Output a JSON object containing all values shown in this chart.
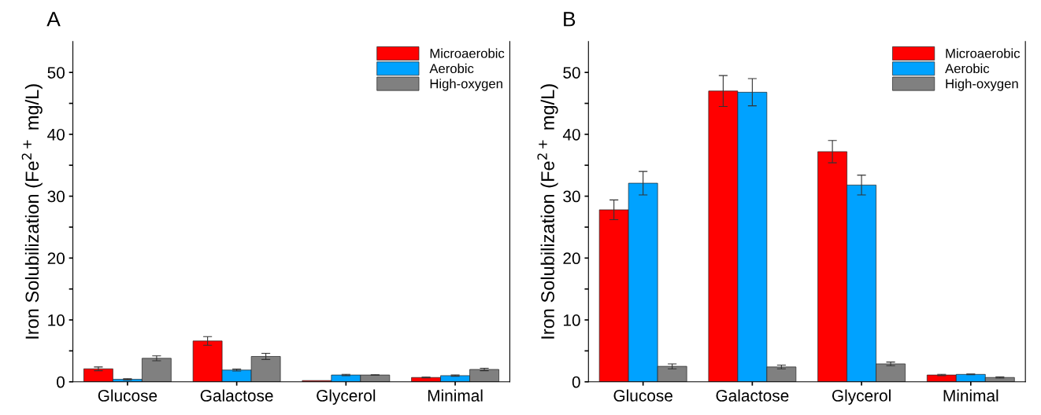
{
  "chart_data": [
    {
      "type": "bar",
      "title": "A",
      "ylabel": "Iron Solubilization (Fe$^{2+}$ mg/L)",
      "categories": [
        "Glucose",
        "Galactose",
        "Glycerol",
        "Minimal"
      ],
      "ylim": [
        0,
        55
      ],
      "yticks": [
        0,
        {
          "value": 5,
          "label": null
        },
        10,
        {
          "value": 15,
          "label": null
        },
        20,
        {
          "value": 25,
          "label": null
        },
        30,
        {
          "value": 35,
          "label": null
        },
        40,
        {
          "value": 45,
          "label": null
        },
        50
      ],
      "legend": "top right",
      "series": [
        {
          "name": "Microaerobic",
          "color": "#ff0000",
          "values": [
            2.1,
            6.6,
            0.2,
            0.7
          ],
          "errors": [
            0.3,
            0.7,
            null,
            0.05
          ]
        },
        {
          "name": "Aerobic",
          "color": "#00a2ff",
          "values": [
            0.4,
            1.9,
            1.1,
            1.0
          ],
          "errors": [
            0.1,
            0.15,
            0.1,
            0.1
          ]
        },
        {
          "name": "High-oxygen",
          "color": "#808080",
          "values": [
            3.8,
            4.1,
            1.1,
            2.0
          ],
          "errors": [
            0.4,
            0.5,
            0.05,
            0.2
          ]
        }
      ]
    },
    {
      "type": "bar",
      "title": "B",
      "ylabel": "Iron Solubilization (Fe$^{2+}$ mg/L)",
      "categories": [
        "Glucose",
        "Galactose",
        "Glycerol",
        "Minimal"
      ],
      "ylim": [
        0,
        55
      ],
      "yticks": [
        0,
        {
          "value": 5,
          "label": null
        },
        10,
        {
          "value": 15,
          "label": null
        },
        20,
        {
          "value": 25,
          "label": null
        },
        30,
        {
          "value": 35,
          "label": null
        },
        40,
        {
          "value": 45,
          "label": null
        },
        50
      ],
      "legend": "top right",
      "series": [
        {
          "name": "Microaerobic",
          "color": "#ff0000",
          "values": [
            27.8,
            47.0,
            37.2,
            1.1
          ],
          "errors": [
            1.6,
            2.5,
            1.8,
            0.1
          ]
        },
        {
          "name": "Aerobic",
          "color": "#00a2ff",
          "values": [
            32.1,
            46.8,
            31.8,
            1.2
          ],
          "errors": [
            1.9,
            2.2,
            1.6,
            0.05
          ]
        },
        {
          "name": "High-oxygen",
          "color": "#808080",
          "values": [
            2.5,
            2.4,
            2.9,
            0.7
          ],
          "errors": [
            0.4,
            0.3,
            0.3,
            0.1
          ]
        }
      ]
    }
  ]
}
